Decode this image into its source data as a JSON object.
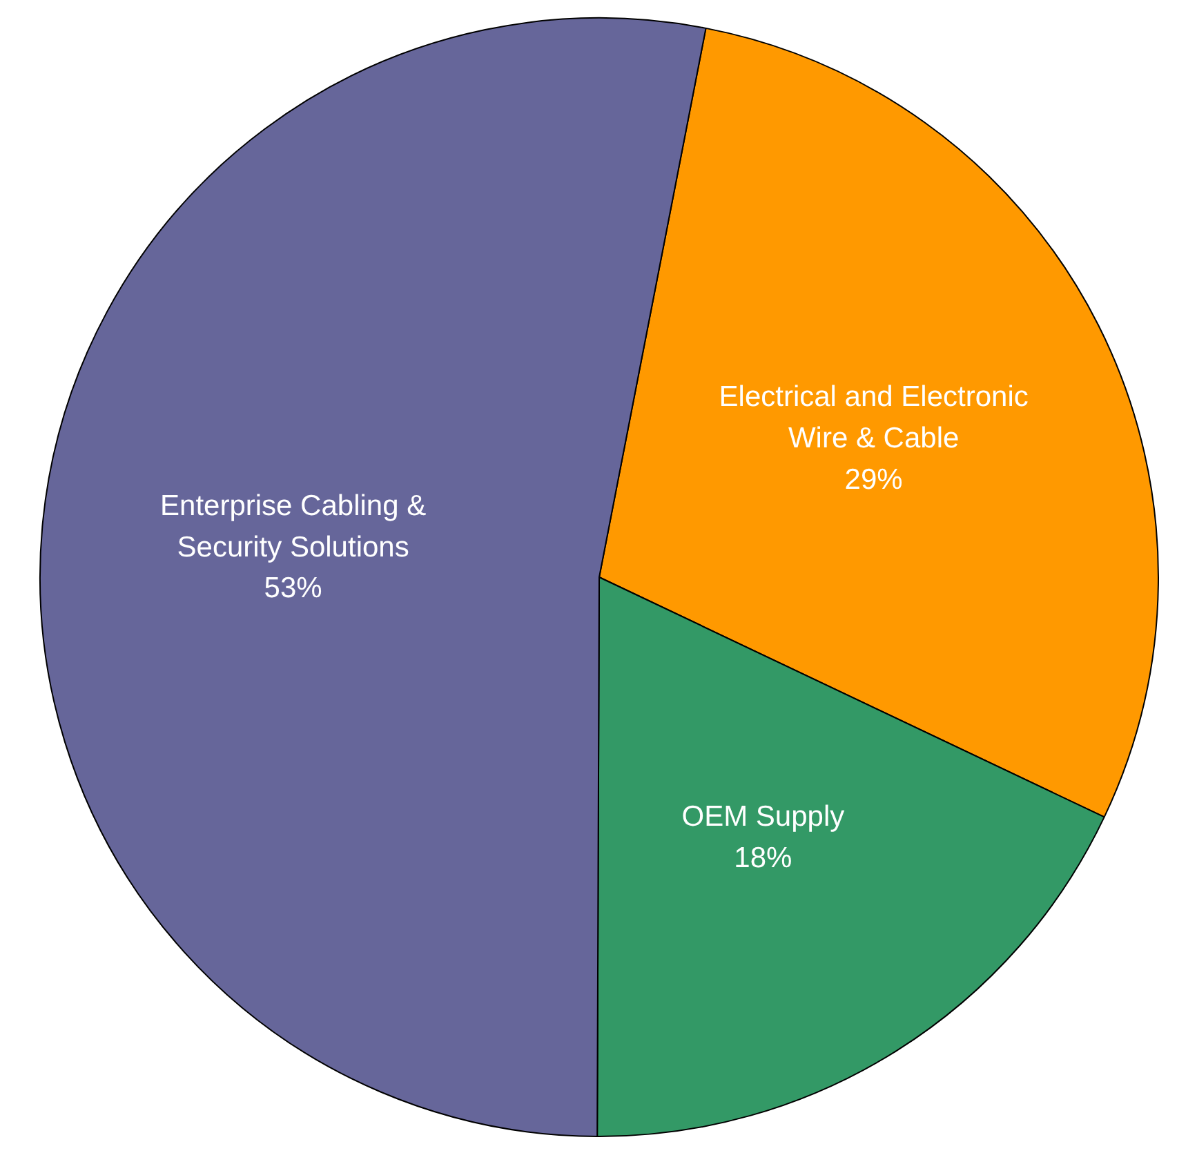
{
  "chart_data": {
    "type": "pie",
    "categories": [
      "Electrical and Electronic\nWire & Cable",
      "OEM Supply",
      "Enterprise Cabling &\nSecurity Solutions"
    ],
    "values": [
      29,
      18,
      53
    ],
    "colors": [
      "#ff9900",
      "#339966",
      "#66669a"
    ],
    "value_labels": [
      "29%",
      "18%",
      "53%"
    ]
  }
}
